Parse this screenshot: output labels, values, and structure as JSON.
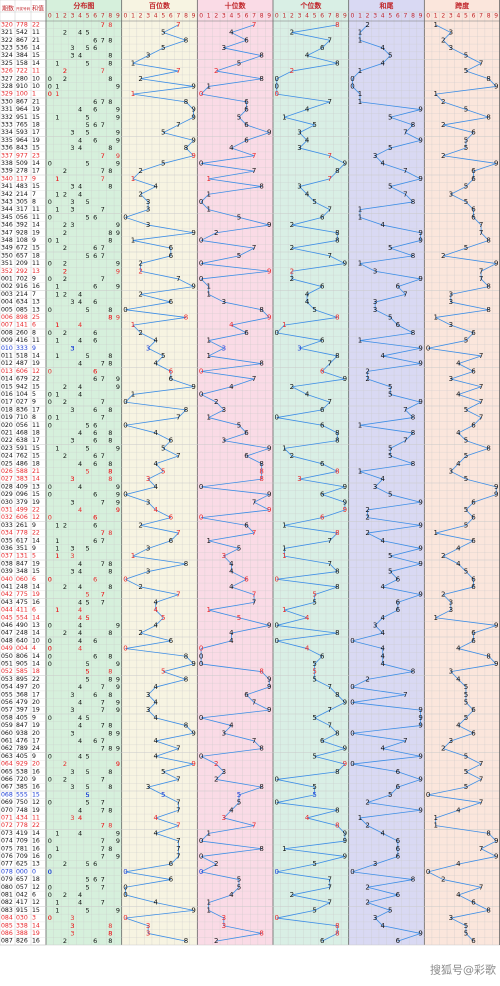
{
  "header": {
    "issue": "期数",
    "number": "开奖号码",
    "sum": "和值",
    "panels": [
      "分布图",
      "百位数",
      "十位数",
      "个位数",
      "和尾",
      "跨度"
    ],
    "digits": [
      0,
      1,
      2,
      3,
      4,
      5,
      6,
      7,
      8,
      9
    ]
  },
  "footer": {
    "watermark": "搜狐号@彩歌"
  },
  "colors": {
    "backgrounds": [
      "#d6f0dc",
      "#f7f4e2",
      "#fadbe6",
      "#d9efe5",
      "#d9d9f3",
      "#fbe6dc"
    ],
    "line": "#3d8ee6",
    "pair": "#e8262a",
    "triple": "#1d3fd6",
    "text": "#111111",
    "grid": "#c9c9c9"
  },
  "rows": [
    [
      "320",
      "778",
      22,
      7,
      7,
      8,
      2,
      1
    ],
    [
      "321",
      "542",
      11,
      5,
      4,
      2,
      1,
      3
    ],
    [
      "322",
      "867",
      21,
      8,
      6,
      7,
      1,
      2
    ],
    [
      "323",
      "536",
      14,
      5,
      3,
      6,
      4,
      3
    ],
    [
      "324",
      "384",
      15,
      3,
      8,
      4,
      5,
      5
    ],
    [
      "325",
      "158",
      14,
      1,
      5,
      8,
      4,
      7
    ],
    [
      "326",
      "722",
      11,
      7,
      2,
      2,
      1,
      5
    ],
    [
      "327",
      "280",
      10,
      2,
      8,
      0,
      0,
      8
    ],
    [
      "328",
      "910",
      10,
      9,
      1,
      0,
      0,
      9
    ],
    [
      "329",
      "100",
      1,
      1,
      0,
      0,
      1,
      1
    ],
    [
      "330",
      "867",
      21,
      8,
      6,
      7,
      1,
      2
    ],
    [
      "331",
      "964",
      19,
      9,
      6,
      4,
      9,
      5
    ],
    [
      "332",
      "951",
      15,
      9,
      5,
      1,
      5,
      8
    ],
    [
      "333",
      "765",
      18,
      7,
      6,
      5,
      8,
      2
    ],
    [
      "334",
      "593",
      17,
      5,
      9,
      3,
      7,
      6
    ],
    [
      "335",
      "964",
      19,
      9,
      6,
      4,
      9,
      5
    ],
    [
      "336",
      "843",
      15,
      8,
      4,
      3,
      5,
      5
    ],
    [
      "337",
      "977",
      23,
      9,
      7,
      7,
      3,
      2
    ],
    [
      "338",
      "509",
      14,
      5,
      0,
      9,
      4,
      9
    ],
    [
      "339",
      "278",
      17,
      2,
      7,
      8,
      7,
      6
    ],
    [
      "340",
      "117",
      9,
      1,
      1,
      7,
      9,
      6
    ],
    [
      "341",
      "483",
      15,
      4,
      8,
      3,
      5,
      5
    ],
    [
      "342",
      "214",
      7,
      2,
      1,
      4,
      7,
      3
    ],
    [
      "343",
      "305",
      8,
      3,
      0,
      5,
      8,
      5
    ],
    [
      "344",
      "317",
      11,
      3,
      1,
      7,
      1,
      6
    ],
    [
      "345",
      "056",
      11,
      0,
      5,
      6,
      1,
      6
    ],
    [
      "346",
      "392",
      14,
      3,
      9,
      2,
      4,
      7
    ],
    [
      "347",
      "928",
      19,
      9,
      2,
      8,
      9,
      7
    ],
    [
      "348",
      "108",
      9,
      1,
      0,
      8,
      9,
      8
    ],
    [
      "349",
      "672",
      15,
      6,
      7,
      2,
      5,
      5
    ],
    [
      "350",
      "657",
      18,
      6,
      5,
      7,
      8,
      2
    ],
    [
      "351",
      "209",
      11,
      2,
      0,
      9,
      1,
      9
    ],
    [
      "352",
      "292",
      13,
      2,
      9,
      2,
      3,
      7
    ],
    [
      "001",
      "702",
      9,
      7,
      0,
      2,
      9,
      7
    ],
    [
      "002",
      "916",
      16,
      9,
      1,
      6,
      6,
      8
    ],
    [
      "003",
      "214",
      7,
      2,
      1,
      4,
      7,
      3
    ],
    [
      "004",
      "634",
      13,
      6,
      3,
      4,
      3,
      3
    ],
    [
      "005",
      "085",
      13,
      0,
      8,
      5,
      3,
      8
    ],
    [
      "006",
      "898",
      25,
      8,
      9,
      8,
      5,
      1
    ],
    [
      "007",
      "141",
      6,
      1,
      4,
      1,
      6,
      3
    ],
    [
      "008",
      "260",
      8,
      2,
      6,
      0,
      8,
      6
    ],
    [
      "009",
      "416",
      11,
      4,
      1,
      6,
      1,
      5
    ],
    [
      "010",
      "333",
      9,
      3,
      3,
      3,
      9,
      0
    ],
    [
      "011",
      "518",
      14,
      5,
      1,
      8,
      4,
      7
    ],
    [
      "012",
      "487",
      19,
      4,
      8,
      7,
      9,
      4
    ],
    [
      "013",
      "606",
      12,
      6,
      0,
      6,
      2,
      6
    ],
    [
      "014",
      "679",
      22,
      6,
      7,
      9,
      2,
      3
    ],
    [
      "015",
      "942",
      15,
      9,
      4,
      2,
      5,
      7
    ],
    [
      "016",
      "104",
      5,
      1,
      0,
      4,
      5,
      4
    ],
    [
      "017",
      "027",
      9,
      0,
      2,
      7,
      9,
      7
    ],
    [
      "018",
      "836",
      17,
      8,
      3,
      6,
      7,
      5
    ],
    [
      "019",
      "710",
      8,
      7,
      1,
      0,
      8,
      7
    ],
    [
      "020",
      "056",
      11,
      0,
      5,
      6,
      1,
      6
    ],
    [
      "021",
      "468",
      18,
      4,
      6,
      8,
      8,
      4
    ],
    [
      "022",
      "638",
      17,
      6,
      3,
      8,
      7,
      5
    ],
    [
      "023",
      "591",
      15,
      5,
      9,
      1,
      5,
      8
    ],
    [
      "024",
      "762",
      15,
      7,
      6,
      2,
      5,
      5
    ],
    [
      "025",
      "486",
      18,
      4,
      8,
      6,
      8,
      4
    ],
    [
      "026",
      "588",
      21,
      5,
      8,
      8,
      1,
      3
    ],
    [
      "027",
      "383",
      14,
      3,
      8,
      3,
      4,
      5
    ],
    [
      "028",
      "409",
      13,
      4,
      0,
      9,
      3,
      9
    ],
    [
      "029",
      "096",
      15,
      0,
      9,
      6,
      5,
      9
    ],
    [
      "030",
      "379",
      19,
      3,
      7,
      9,
      9,
      6
    ],
    [
      "031",
      "499",
      22,
      4,
      9,
      9,
      2,
      5
    ],
    [
      "032",
      "606",
      12,
      6,
      0,
      6,
      2,
      6
    ],
    [
      "033",
      "261",
      9,
      2,
      6,
      1,
      9,
      5
    ],
    [
      "034",
      "778",
      22,
      7,
      7,
      8,
      2,
      1
    ],
    [
      "035",
      "617",
      14,
      6,
      1,
      7,
      4,
      6
    ],
    [
      "036",
      "351",
      9,
      3,
      5,
      1,
      9,
      4
    ],
    [
      "037",
      "131",
      5,
      1,
      3,
      1,
      5,
      2
    ],
    [
      "038",
      "847",
      19,
      8,
      4,
      7,
      9,
      4
    ],
    [
      "039",
      "348",
      15,
      3,
      4,
      8,
      5,
      5
    ],
    [
      "040",
      "060",
      6,
      0,
      6,
      0,
      6,
      6
    ],
    [
      "041",
      "248",
      14,
      2,
      4,
      8,
      4,
      6
    ],
    [
      "042",
      "775",
      19,
      7,
      7,
      5,
      9,
      2
    ],
    [
      "043",
      "475",
      16,
      4,
      7,
      5,
      6,
      3
    ],
    [
      "044",
      "411",
      6,
      4,
      1,
      1,
      6,
      3
    ],
    [
      "045",
      "554",
      14,
      5,
      5,
      4,
      4,
      1
    ],
    [
      "046",
      "490",
      13,
      4,
      9,
      0,
      3,
      9
    ],
    [
      "047",
      "248",
      14,
      2,
      4,
      8,
      4,
      6
    ],
    [
      "048",
      "640",
      10,
      6,
      4,
      0,
      0,
      6
    ],
    [
      "049",
      "004",
      4,
      0,
      0,
      4,
      4,
      4
    ],
    [
      "050",
      "806",
      14,
      8,
      0,
      6,
      4,
      8
    ],
    [
      "051",
      "905",
      14,
      9,
      0,
      5,
      4,
      9
    ],
    [
      "052",
      "585",
      18,
      5,
      8,
      5,
      8,
      3
    ],
    [
      "053",
      "895",
      22,
      8,
      9,
      5,
      2,
      4
    ],
    [
      "054",
      "497",
      20,
      4,
      9,
      7,
      0,
      5
    ],
    [
      "055",
      "368",
      17,
      3,
      6,
      8,
      7,
      5
    ],
    [
      "056",
      "479",
      20,
      4,
      7,
      9,
      0,
      5
    ],
    [
      "057",
      "397",
      19,
      3,
      9,
      7,
      9,
      6
    ],
    [
      "058",
      "405",
      9,
      4,
      0,
      5,
      9,
      5
    ],
    [
      "059",
      "847",
      19,
      8,
      4,
      7,
      9,
      4
    ],
    [
      "060",
      "938",
      20,
      9,
      3,
      8,
      0,
      6
    ],
    [
      "061",
      "476",
      17,
      4,
      7,
      6,
      7,
      3
    ],
    [
      "062",
      "789",
      24,
      7,
      8,
      9,
      4,
      2
    ],
    [
      "063",
      "405",
      9,
      4,
      0,
      5,
      9,
      5
    ],
    [
      "064",
      "929",
      20,
      9,
      2,
      9,
      0,
      7
    ],
    [
      "065",
      "538",
      16,
      5,
      3,
      8,
      6,
      5
    ],
    [
      "066",
      "720",
      9,
      7,
      2,
      0,
      9,
      7
    ],
    [
      "067",
      "385",
      16,
      3,
      8,
      5,
      6,
      5
    ],
    [
      "068",
      "555",
      15,
      5,
      5,
      5,
      5,
      0
    ],
    [
      "069",
      "750",
      12,
      7,
      5,
      0,
      2,
      7
    ],
    [
      "070",
      "748",
      19,
      7,
      4,
      8,
      9,
      4
    ],
    [
      "071",
      "434",
      11,
      4,
      3,
      4,
      1,
      1
    ],
    [
      "072",
      "778",
      22,
      7,
      7,
      8,
      2,
      1
    ],
    [
      "073",
      "419",
      14,
      4,
      1,
      9,
      4,
      8
    ],
    [
      "074",
      "709",
      16,
      7,
      0,
      9,
      6,
      9
    ],
    [
      "075",
      "781",
      16,
      7,
      8,
      1,
      6,
      7
    ],
    [
      "076",
      "709",
      16,
      7,
      0,
      9,
      6,
      9
    ],
    [
      "077",
      "625",
      13,
      6,
      2,
      5,
      3,
      4
    ],
    [
      "078",
      "000",
      0,
      0,
      0,
      0,
      0,
      0
    ],
    [
      "079",
      "657",
      18,
      6,
      5,
      7,
      8,
      2
    ],
    [
      "080",
      "057",
      12,
      0,
      5,
      7,
      2,
      7
    ],
    [
      "081",
      "042",
      6,
      0,
      4,
      2,
      6,
      4
    ],
    [
      "082",
      "417",
      12,
      4,
      1,
      7,
      2,
      6
    ],
    [
      "083",
      "915",
      15,
      9,
      1,
      5,
      5,
      8
    ],
    [
      "084",
      "030",
      3,
      0,
      3,
      0,
      3,
      3
    ],
    [
      "085",
      "338",
      14,
      3,
      3,
      8,
      4,
      5
    ],
    [
      "086",
      "388",
      19,
      3,
      8,
      8,
      9,
      5
    ],
    [
      "087",
      "826",
      16,
      8,
      2,
      6,
      6,
      6
    ]
  ]
}
